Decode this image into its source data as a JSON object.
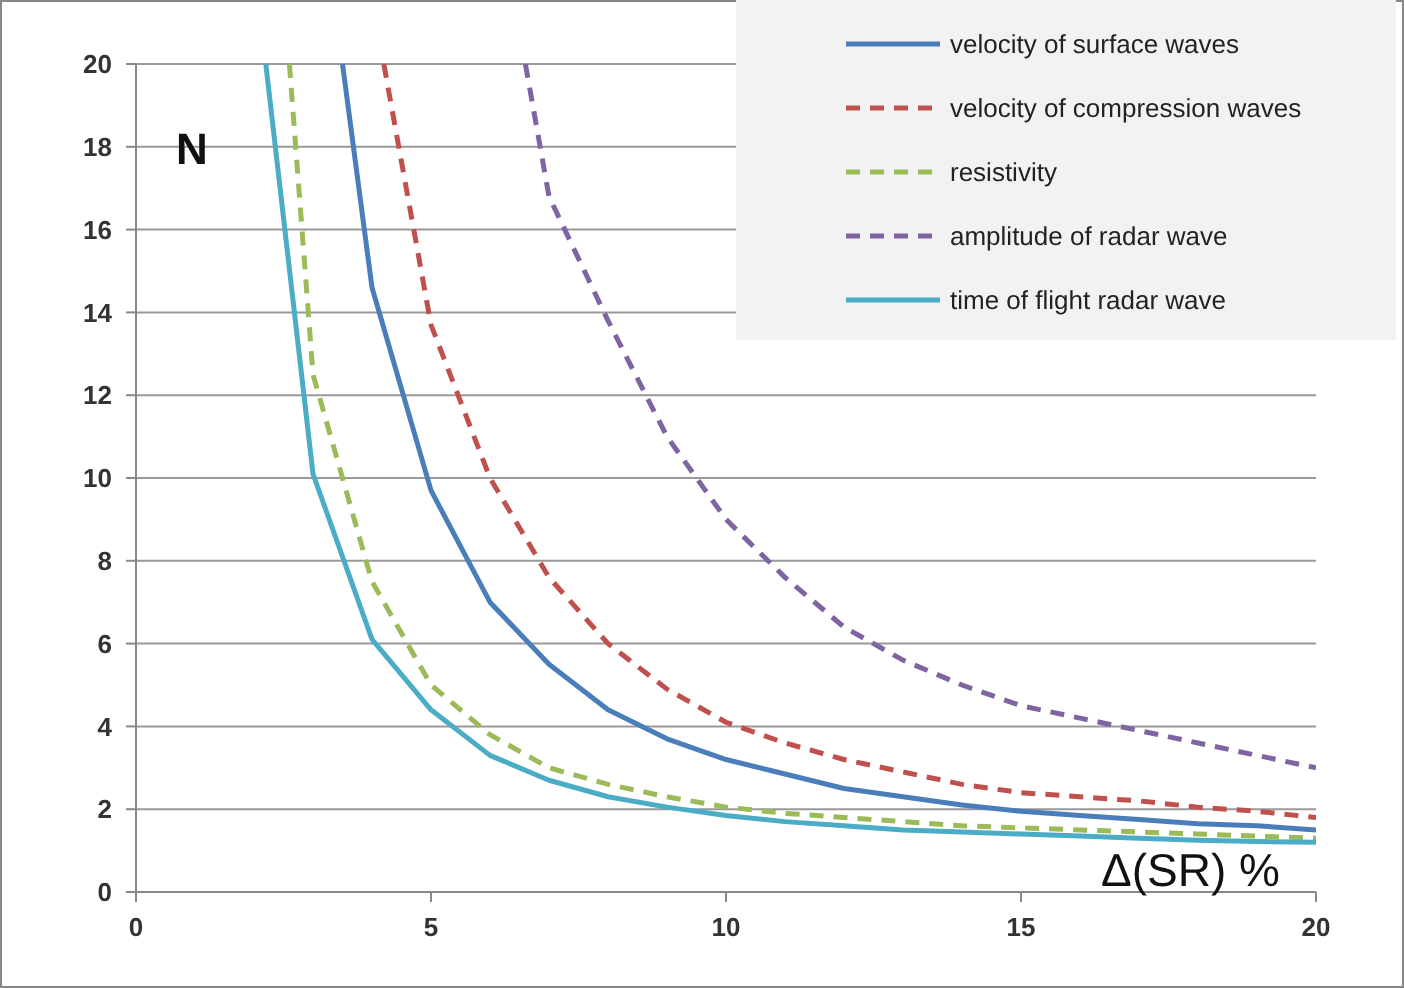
{
  "chart_data": {
    "type": "line",
    "xlabel": "Δ(SR) %",
    "ylabel": "N",
    "xlim": [
      0,
      20
    ],
    "ylim": [
      0,
      20
    ],
    "xticks": [
      0,
      5,
      10,
      15,
      20
    ],
    "yticks": [
      0,
      2,
      4,
      6,
      8,
      10,
      12,
      14,
      16,
      18,
      20
    ],
    "grid": "y",
    "legend": "top right",
    "series": [
      {
        "name": "velocity of surface waves",
        "color": "#4a7ebb",
        "line_style": "solid",
        "x": [
          3.5,
          4,
          5,
          6,
          7,
          8,
          9,
          10,
          11,
          12,
          13,
          14,
          15,
          16,
          17,
          18,
          19,
          20
        ],
        "values": [
          20,
          14.6,
          9.7,
          7.0,
          5.5,
          4.4,
          3.7,
          3.2,
          2.85,
          2.5,
          2.3,
          2.1,
          1.95,
          1.85,
          1.75,
          1.65,
          1.6,
          1.5
        ]
      },
      {
        "name": "velocity of compression waves",
        "color": "#c0504d",
        "line_style": "dashed",
        "x": [
          4.2,
          5,
          6,
          7,
          8,
          9,
          10,
          11,
          12,
          13,
          14,
          15,
          16,
          17,
          18,
          19,
          20
        ],
        "values": [
          20,
          13.7,
          10.0,
          7.6,
          6.0,
          4.9,
          4.1,
          3.6,
          3.2,
          2.9,
          2.6,
          2.4,
          2.3,
          2.2,
          2.05,
          1.95,
          1.8
        ]
      },
      {
        "name": "resistivity",
        "color": "#9bbb59",
        "line_style": "dashed",
        "x": [
          2.6,
          3,
          4,
          5,
          6,
          7,
          8,
          9,
          10,
          11,
          12,
          13,
          14,
          15,
          16,
          17,
          18,
          19,
          20
        ],
        "values": [
          20,
          12.5,
          7.5,
          5.0,
          3.8,
          3.0,
          2.6,
          2.3,
          2.05,
          1.9,
          1.8,
          1.7,
          1.6,
          1.55,
          1.5,
          1.45,
          1.4,
          1.35,
          1.3
        ]
      },
      {
        "name": "amplitude of radar wave",
        "color": "#8064a2",
        "line_style": "dashed",
        "x": [
          6.6,
          7,
          8,
          9,
          10,
          11,
          12,
          13,
          14,
          15,
          16,
          17,
          18,
          19,
          20
        ],
        "values": [
          20,
          16.8,
          13.8,
          11.0,
          9.0,
          7.6,
          6.4,
          5.6,
          5.0,
          4.5,
          4.2,
          3.9,
          3.6,
          3.3,
          3.0
        ]
      },
      {
        "name": "time of flight radar wave",
        "color": "#4bacc6",
        "line_style": "solid",
        "x": [
          2.2,
          3,
          4,
          5,
          6,
          7,
          8,
          9,
          10,
          11,
          12,
          13,
          14,
          15,
          16,
          17,
          18,
          19,
          20
        ],
        "values": [
          20,
          10.1,
          6.1,
          4.4,
          3.3,
          2.7,
          2.3,
          2.05,
          1.85,
          1.7,
          1.6,
          1.5,
          1.45,
          1.4,
          1.35,
          1.3,
          1.25,
          1.22,
          1.2
        ]
      }
    ]
  }
}
